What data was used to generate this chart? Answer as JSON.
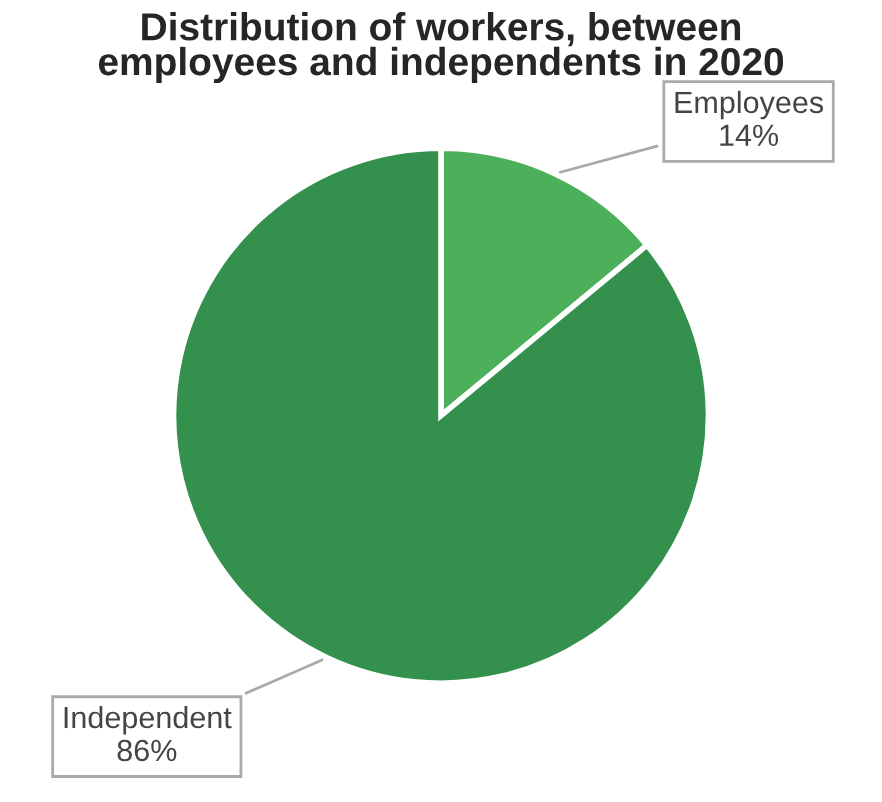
{
  "chart_data": {
    "type": "pie",
    "title": "Distribution of workers, between\nemployees and independents in 2020",
    "categories": [
      "Employees",
      "Independent"
    ],
    "values": [
      14,
      86
    ],
    "colors": [
      "#4caf5a",
      "#33914d"
    ],
    "value_labels": [
      "14%",
      "86%"
    ]
  }
}
